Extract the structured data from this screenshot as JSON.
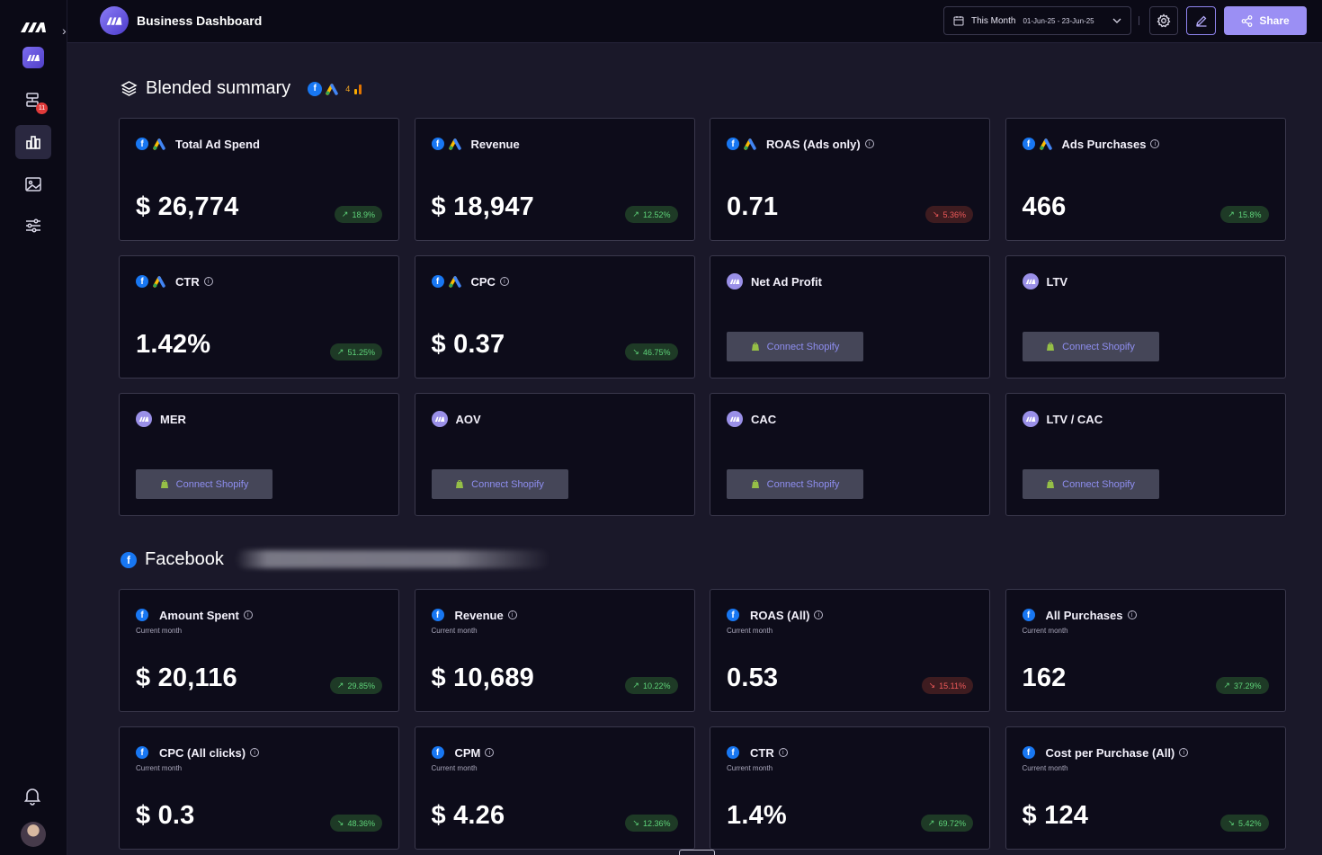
{
  "header": {
    "title": "Business Dashboard",
    "date_label": "This Month",
    "date_range": "01-Jun-25 - 23-Jun-25",
    "share_label": "Share"
  },
  "sidebar": {
    "badge_count": "11",
    "items": [
      {
        "name": "workflows",
        "icon": "flow-icon"
      },
      {
        "name": "dashboard",
        "icon": "chart-icon",
        "active": true
      },
      {
        "name": "creatives",
        "icon": "image-icon"
      },
      {
        "name": "settings",
        "icon": "sliders-icon"
      }
    ]
  },
  "blended": {
    "title": "Blended summary",
    "badge_number": "4",
    "cards": [
      {
        "title": "Total Ad Spend",
        "sources": [
          "facebook",
          "google"
        ],
        "value": "$ 26,774",
        "change": "18.9%",
        "dir": "up",
        "info": false
      },
      {
        "title": "Revenue",
        "sources": [
          "facebook",
          "google"
        ],
        "value": "$ 18,947",
        "change": "12.52%",
        "dir": "up",
        "info": false
      },
      {
        "title": "ROAS (Ads only)",
        "sources": [
          "facebook",
          "google"
        ],
        "value": "0.71",
        "change": "5.36%",
        "dir": "down",
        "info": true
      },
      {
        "title": "Ads Purchases",
        "sources": [
          "facebook",
          "google"
        ],
        "value": "466",
        "change": "15.8%",
        "dir": "up",
        "info": true
      },
      {
        "title": "CTR",
        "sources": [
          "facebook",
          "google"
        ],
        "value": "1.42%",
        "change": "51.25%",
        "dir": "up",
        "info": true
      },
      {
        "title": "CPC",
        "sources": [
          "facebook",
          "google"
        ],
        "value": "$ 0.37",
        "change": "46.75%",
        "dir": "down",
        "info": true
      },
      {
        "title": "Net Ad Profit",
        "sources": [
          "brand"
        ],
        "connect": "Connect Shopify"
      },
      {
        "title": "LTV",
        "sources": [
          "brand"
        ],
        "connect": "Connect Shopify"
      },
      {
        "title": "MER",
        "sources": [
          "brand"
        ],
        "connect": "Connect Shopify"
      },
      {
        "title": "AOV",
        "sources": [
          "brand"
        ],
        "connect": "Connect Shopify"
      },
      {
        "title": "CAC",
        "sources": [
          "brand"
        ],
        "connect": "Connect Shopify"
      },
      {
        "title": "LTV / CAC",
        "sources": [
          "brand"
        ],
        "connect": "Connect Shopify"
      }
    ]
  },
  "facebook": {
    "title": "Facebook",
    "cards": [
      {
        "title": "Amount Spent",
        "sub": "Current month",
        "value": "$ 20,116",
        "change": "29.85%",
        "dir": "up"
      },
      {
        "title": "Revenue",
        "sub": "Current month",
        "value": "$ 10,689",
        "change": "10.22%",
        "dir": "up"
      },
      {
        "title": "ROAS (All)",
        "sub": "Current month",
        "value": "0.53",
        "change": "15.11%",
        "dir": "down"
      },
      {
        "title": "All Purchases",
        "sub": "Current month",
        "value": "162",
        "change": "37.29%",
        "dir": "up"
      },
      {
        "title": "CPC (All clicks)",
        "sub": "Current month",
        "value": "$ 0.3",
        "change": "48.36%",
        "dir": "down"
      },
      {
        "title": "CPM",
        "sub": "Current month",
        "value": "$ 4.26",
        "change": "12.36%",
        "dir": "down"
      },
      {
        "title": "CTR",
        "sub": "Current month",
        "value": "1.4%",
        "change": "69.72%",
        "dir": "up"
      },
      {
        "title": "Cost per Purchase (All)",
        "sub": "Current month",
        "value": "$ 124",
        "change": "5.42%",
        "dir": "down"
      }
    ]
  },
  "colors": {
    "accent": "#9b8ff4",
    "up": "#5fd47a",
    "down": "#f05a5a",
    "facebook": "#1877f2"
  }
}
